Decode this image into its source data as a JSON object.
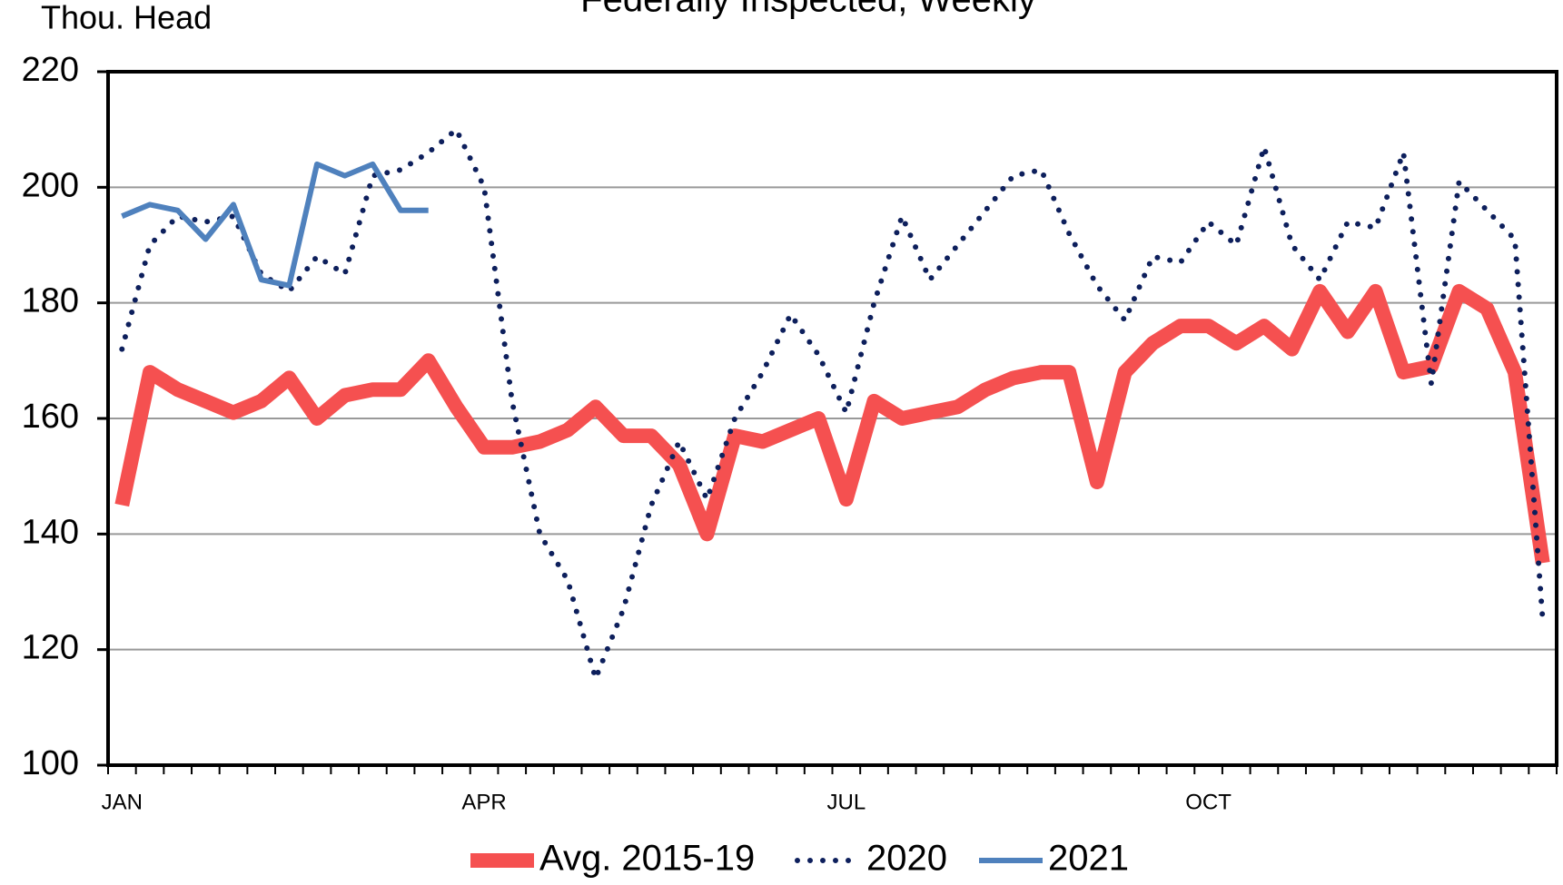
{
  "chart_data": {
    "type": "line",
    "title": "Federally Inspected, Weekly",
    "y_label": "Thou. Head",
    "categories": [
      "JAN",
      null,
      null,
      null,
      null,
      null,
      null,
      null,
      null,
      null,
      null,
      null,
      null,
      "APR",
      null,
      null,
      null,
      null,
      null,
      null,
      null,
      null,
      null,
      null,
      null,
      null,
      "JUL",
      null,
      null,
      null,
      null,
      null,
      null,
      null,
      null,
      null,
      null,
      null,
      null,
      "OCT",
      null,
      null,
      null,
      null,
      null,
      null,
      null,
      null,
      null,
      null,
      null,
      null
    ],
    "series": [
      {
        "name": "Avg. 2015-19",
        "color": "#f55050",
        "style": "solid-thick",
        "values": [
          145,
          168,
          165,
          163,
          161,
          163,
          167,
          160,
          164,
          165,
          165,
          170,
          162,
          155,
          155,
          156,
          158,
          162,
          157,
          157,
          152,
          140,
          157,
          156,
          158,
          160,
          146,
          163,
          160,
          161,
          162,
          165,
          167,
          168,
          168,
          149,
          168,
          173,
          176,
          176,
          173,
          176,
          172,
          182,
          175,
          182,
          168,
          169,
          182,
          179,
          168,
          135
        ]
      },
      {
        "name": "2020",
        "color": "#0d1f5c",
        "style": "dotted",
        "values": [
          172,
          190,
          195,
          194,
          195,
          185,
          182,
          188,
          185,
          202,
          203,
          206,
          210,
          200,
          163,
          140,
          132,
          115,
          127,
          145,
          156,
          146,
          160,
          168,
          178,
          171,
          161,
          180,
          195,
          184,
          190,
          196,
          202,
          203,
          192,
          183,
          177,
          188,
          187,
          194,
          190,
          207,
          190,
          184,
          194,
          193,
          206,
          166,
          201,
          196,
          191,
          125
        ]
      },
      {
        "name": "2021",
        "color": "#4f81bd",
        "style": "solid",
        "values": [
          195,
          197,
          196,
          191,
          197,
          184,
          183,
          204,
          202,
          204,
          196,
          196,
          null,
          null,
          null,
          null,
          null,
          null,
          null,
          null,
          null,
          null,
          null,
          null,
          null,
          null,
          null,
          null,
          null,
          null,
          null,
          null,
          null,
          null,
          null,
          null,
          null,
          null,
          null,
          null,
          null,
          null,
          null,
          null,
          null,
          null,
          null,
          null,
          null,
          null,
          null,
          null
        ]
      }
    ],
    "ylim": [
      100,
      220
    ],
    "yticks": [
      100,
      120,
      140,
      160,
      180,
      200,
      220
    ],
    "grid": true
  }
}
